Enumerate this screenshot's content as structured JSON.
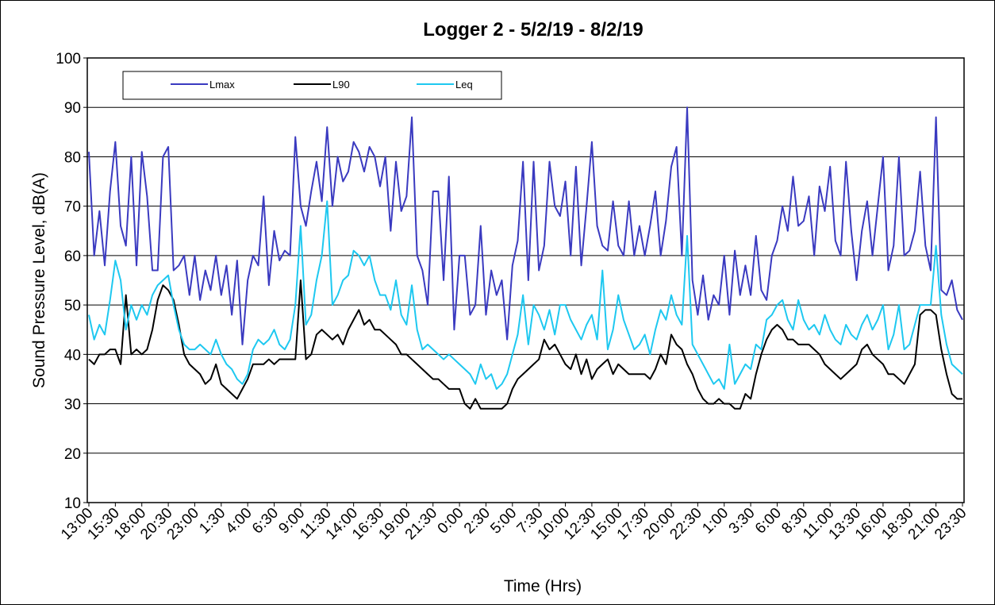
{
  "chart_data": {
    "type": "line",
    "title": "Logger 2  -  5/2/19 - 8/2/19",
    "xlabel": "Time (Hrs)",
    "ylabel": "Sound Pressure Level, dB(A)",
    "ylim": [
      10,
      100
    ],
    "yticks": [
      10,
      20,
      30,
      40,
      50,
      60,
      70,
      80,
      90,
      100
    ],
    "grid": true,
    "legend": "top-left",
    "categories": [
      "13:00",
      null,
      null,
      null,
      null,
      "15:30",
      null,
      null,
      null,
      null,
      "18:00",
      null,
      null,
      null,
      null,
      "20:30",
      null,
      null,
      null,
      null,
      "23:00",
      null,
      null,
      null,
      null,
      "1:30",
      null,
      null,
      null,
      null,
      "4:00",
      null,
      null,
      null,
      null,
      "6:30",
      null,
      null,
      null,
      null,
      "9:00",
      null,
      null,
      null,
      null,
      "11:30",
      null,
      null,
      null,
      null,
      "14:00",
      null,
      null,
      null,
      null,
      "16:30",
      null,
      null,
      null,
      null,
      "19:00",
      null,
      null,
      null,
      null,
      "21:30",
      null,
      null,
      null,
      null,
      "0:00",
      null,
      null,
      null,
      null,
      "2:30",
      null,
      null,
      null,
      null,
      "5:00",
      null,
      null,
      null,
      null,
      "7:30",
      null,
      null,
      null,
      null,
      "10:00",
      null,
      null,
      null,
      null,
      "12:30",
      null,
      null,
      null,
      null,
      "15:00",
      null,
      null,
      null,
      null,
      "17:30",
      null,
      null,
      null,
      null,
      "20:00",
      null,
      null,
      null,
      null,
      "22:30",
      null,
      null,
      null,
      null,
      "1:00",
      null,
      null,
      null,
      null,
      "3:30",
      null,
      null,
      null,
      null,
      "6:00",
      null,
      null,
      null,
      null,
      "8:30",
      null,
      null,
      null,
      null,
      "11:00",
      null,
      null,
      null,
      null,
      "13:30",
      null,
      null,
      null,
      null,
      "16:00",
      null,
      null,
      null,
      null,
      "18:30",
      null,
      null,
      null,
      null,
      "21:00",
      null,
      null,
      null,
      null,
      "23:30"
    ],
    "series": [
      {
        "name": "Lmax",
        "color": "#3a3ac0",
        "values": [
          81,
          60,
          69,
          58,
          73,
          83,
          66,
          62,
          80,
          58,
          81,
          72,
          57,
          57,
          80,
          82,
          57,
          58,
          60,
          52,
          60,
          51,
          57,
          53,
          60,
          52,
          58,
          48,
          59,
          42,
          55,
          60,
          58,
          72,
          54,
          65,
          59,
          61,
          60,
          84,
          70,
          66,
          73,
          79,
          71,
          86,
          70,
          80,
          75,
          77,
          83,
          81,
          77,
          82,
          80,
          74,
          80,
          65,
          79,
          69,
          72,
          88,
          60,
          57,
          50,
          73,
          73,
          55,
          76,
          45,
          60,
          60,
          48,
          50,
          66,
          48,
          57,
          52,
          55,
          43,
          58,
          63,
          79,
          55,
          79,
          57,
          62,
          79,
          70,
          68,
          75,
          60,
          78,
          58,
          70,
          83,
          66,
          62,
          61,
          71,
          62,
          60,
          71,
          60,
          66,
          60,
          66,
          73,
          60,
          67,
          78,
          82,
          60,
          90,
          55,
          48,
          56,
          47,
          52,
          50,
          60,
          48,
          61,
          52,
          58,
          52,
          64,
          53,
          51,
          60,
          63,
          70,
          65,
          76,
          66,
          67,
          72,
          60,
          74,
          69,
          78,
          63,
          60,
          79,
          65,
          55,
          65,
          71,
          60,
          70,
          80,
          57,
          62,
          80,
          60,
          61,
          65,
          77,
          62,
          57,
          88,
          53,
          52,
          55,
          49,
          47
        ]
      },
      {
        "name": "L90",
        "color": "#000000",
        "values": [
          39,
          38,
          40,
          40,
          41,
          41,
          38,
          52,
          40,
          41,
          40,
          41,
          45,
          51,
          54,
          53,
          51,
          46,
          40,
          38,
          37,
          36,
          34,
          35,
          38,
          34,
          33,
          32,
          31,
          33,
          35,
          38,
          38,
          38,
          39,
          38,
          39,
          39,
          39,
          39,
          55,
          39,
          40,
          44,
          45,
          44,
          43,
          44,
          42,
          45,
          47,
          49,
          46,
          47,
          45,
          45,
          44,
          43,
          42,
          40,
          40,
          39,
          38,
          37,
          36,
          35,
          35,
          34,
          33,
          33,
          33,
          30,
          29,
          31,
          29,
          29,
          29,
          29,
          29,
          30,
          33,
          35,
          36,
          37,
          38,
          39,
          43,
          41,
          42,
          40,
          38,
          37,
          40,
          36,
          39,
          35,
          37,
          38,
          39,
          36,
          38,
          37,
          36,
          36,
          36,
          36,
          35,
          37,
          40,
          38,
          44,
          42,
          41,
          38,
          36,
          33,
          31,
          30,
          30,
          31,
          30,
          30,
          29,
          29,
          32,
          31,
          36,
          40,
          43,
          45,
          46,
          45,
          43,
          43,
          42,
          42,
          42,
          41,
          40,
          38,
          37,
          36,
          35,
          36,
          37,
          38,
          41,
          42,
          40,
          39,
          38,
          36,
          36,
          35,
          34,
          36,
          38,
          48,
          49,
          49,
          48,
          41,
          36,
          32,
          31,
          31
        ]
      },
      {
        "name": "Leq",
        "color": "#1ec8f0",
        "values": [
          48,
          43,
          46,
          44,
          51,
          59,
          55,
          45,
          50,
          47,
          50,
          48,
          52,
          54,
          55,
          56,
          50,
          45,
          42,
          41,
          41,
          42,
          41,
          40,
          43,
          40,
          38,
          37,
          35,
          34,
          36,
          41,
          43,
          42,
          43,
          45,
          42,
          41,
          43,
          50,
          66,
          46,
          48,
          55,
          60,
          71,
          50,
          52,
          55,
          56,
          61,
          60,
          58,
          60,
          55,
          52,
          52,
          49,
          55,
          48,
          46,
          54,
          45,
          41,
          42,
          41,
          40,
          39,
          40,
          39,
          38,
          37,
          36,
          34,
          38,
          35,
          36,
          33,
          34,
          36,
          40,
          44,
          52,
          42,
          50,
          48,
          45,
          49,
          44,
          50,
          50,
          47,
          45,
          43,
          46,
          48,
          43,
          57,
          41,
          45,
          52,
          47,
          44,
          41,
          42,
          44,
          40,
          45,
          49,
          47,
          52,
          48,
          46,
          64,
          42,
          40,
          38,
          36,
          34,
          35,
          33,
          42,
          34,
          36,
          38,
          37,
          42,
          41,
          47,
          48,
          50,
          51,
          47,
          45,
          51,
          47,
          45,
          46,
          44,
          48,
          45,
          43,
          42,
          46,
          44,
          43,
          46,
          48,
          45,
          47,
          50,
          41,
          44,
          50,
          41,
          42,
          46,
          50,
          50,
          50,
          62,
          48,
          42,
          38,
          37,
          36
        ]
      }
    ]
  }
}
